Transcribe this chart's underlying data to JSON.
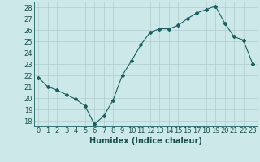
{
  "x": [
    0,
    1,
    2,
    3,
    4,
    5,
    6,
    7,
    8,
    9,
    10,
    11,
    12,
    13,
    14,
    15,
    16,
    17,
    18,
    19,
    20,
    21,
    22,
    23
  ],
  "y": [
    21.8,
    21.0,
    20.7,
    20.3,
    19.9,
    19.3,
    17.7,
    18.4,
    19.8,
    22.0,
    23.3,
    24.7,
    25.8,
    26.1,
    26.1,
    26.4,
    27.0,
    27.5,
    27.8,
    28.1,
    26.6,
    25.4,
    25.1,
    23.0
  ],
  "line_color": "#1a6060",
  "marker": "D",
  "marker_size": 2,
  "bg_color": "#cce8e8",
  "grid_color": "#b0cccc",
  "xlabel": "Humidex (Indice chaleur)",
  "ylim": [
    17.5,
    28.5
  ],
  "xlim": [
    -0.5,
    23.5
  ],
  "yticks": [
    18,
    19,
    20,
    21,
    22,
    23,
    24,
    25,
    26,
    27,
    28
  ],
  "xticks": [
    0,
    1,
    2,
    3,
    4,
    5,
    6,
    7,
    8,
    9,
    10,
    11,
    12,
    13,
    14,
    15,
    16,
    17,
    18,
    19,
    20,
    21,
    22,
    23
  ],
  "label_color": "#1a5050",
  "tick_color": "#1a5050",
  "xlabel_fontsize": 7,
  "tick_fontsize": 6
}
